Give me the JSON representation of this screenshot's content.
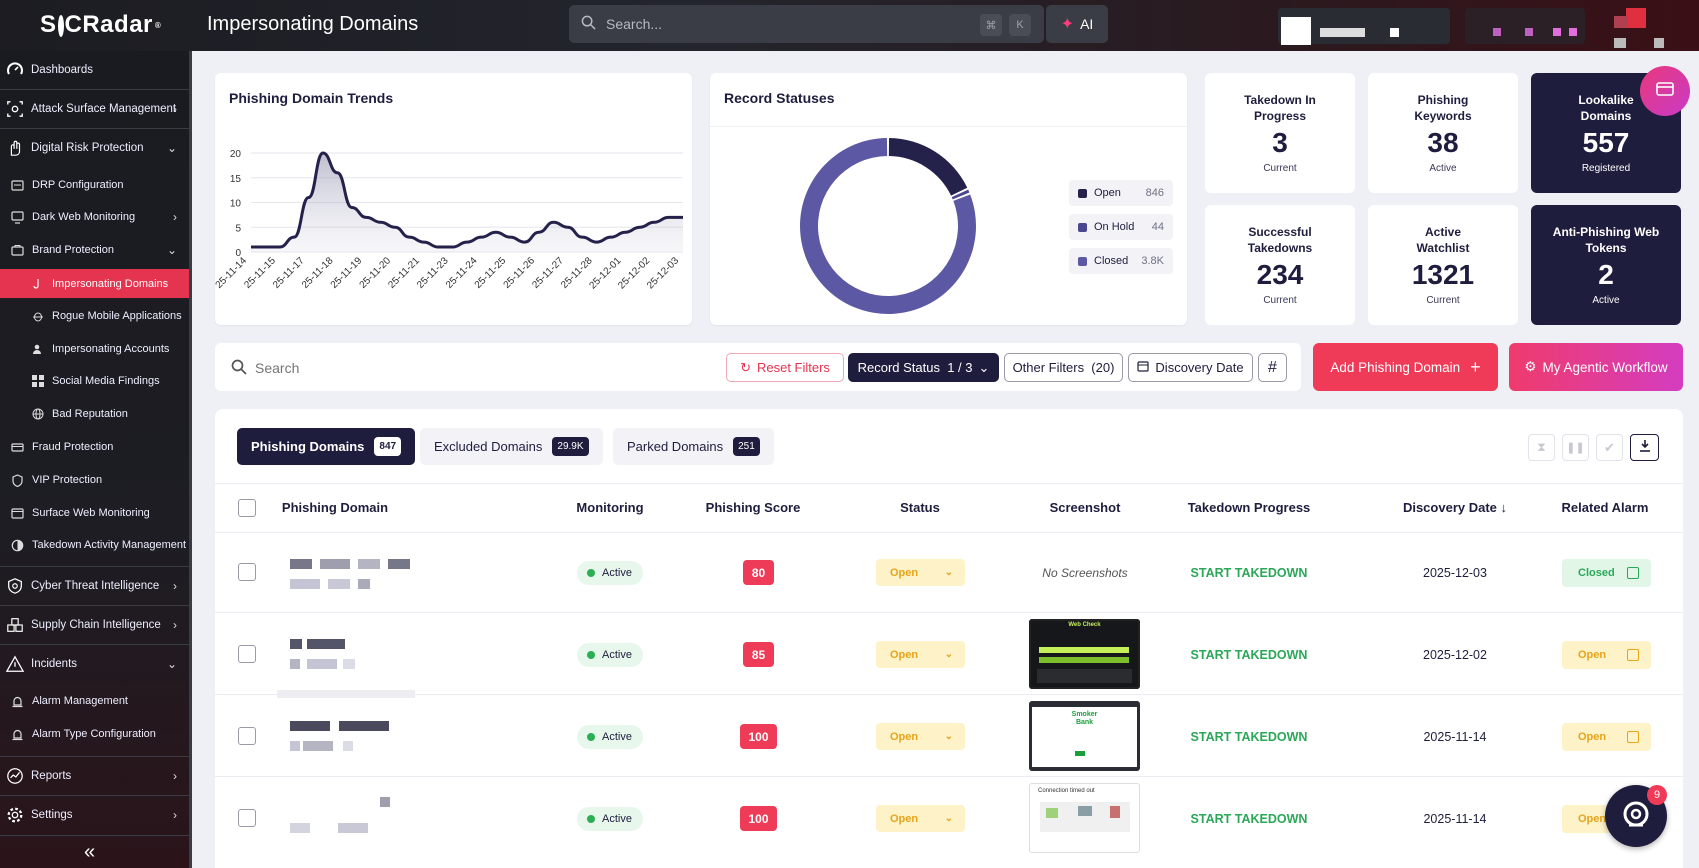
{
  "app": {
    "brand": "SOCRadar",
    "brand_mark": "®",
    "page_title": "Impersonating Domains"
  },
  "search": {
    "placeholder": "Search...",
    "key1": "⌘",
    "key2": "K",
    "ai_label": "AI"
  },
  "sidebar": {
    "items": [
      {
        "label": "Dashboards",
        "icon": "dashboard-icon"
      },
      {
        "label": "Attack Surface Management",
        "icon": "asm-icon"
      },
      {
        "label": "Digital Risk Protection",
        "icon": "hand-icon"
      },
      {
        "label": "DRP Configuration",
        "icon": "config-icon"
      },
      {
        "label": "Dark Web Monitoring",
        "icon": "monitor-icon"
      },
      {
        "label": "Brand Protection",
        "icon": "briefcase-icon"
      },
      {
        "label": "Impersonating Domains",
        "icon": "hook-icon"
      },
      {
        "label": "Rogue Mobile Applications",
        "icon": "bug-icon"
      },
      {
        "label": "Impersonating Accounts",
        "icon": "user-icon"
      },
      {
        "label": "Social Media Findings",
        "icon": "grid-icon"
      },
      {
        "label": "Bad Reputation",
        "icon": "globe-icon"
      },
      {
        "label": "Fraud Protection",
        "icon": "card-icon"
      },
      {
        "label": "VIP Protection",
        "icon": "shield-icon"
      },
      {
        "label": "Surface Web Monitoring",
        "icon": "web-icon"
      },
      {
        "label": "Takedown Activity Management",
        "icon": "takedown-icon"
      },
      {
        "label": "Cyber Threat Intelligence",
        "icon": "cti-icon"
      },
      {
        "label": "Supply Chain Intelligence",
        "icon": "supply-icon"
      },
      {
        "label": "Incidents",
        "icon": "incident-icon"
      },
      {
        "label": "Alarm Management",
        "icon": "alarm-icon"
      },
      {
        "label": "Alarm Type Configuration",
        "icon": "alarm-config-icon"
      },
      {
        "label": "Reports",
        "icon": "reports-icon"
      },
      {
        "label": "Settings",
        "icon": "settings-icon"
      }
    ],
    "collapse": "«"
  },
  "trends": {
    "title": "Phishing Domain Trends",
    "chart_data": {
      "type": "area",
      "title": "Phishing Domain Trends",
      "ylim": [
        0,
        20
      ],
      "yticks": [
        0,
        5,
        10,
        15,
        20
      ],
      "categories": [
        "25-11-14",
        "25-11-15",
        "25-11-17",
        "25-11-18",
        "25-11-19",
        "25-11-20",
        "25-11-21",
        "25-11-23",
        "25-11-24",
        "25-11-25",
        "25-11-26",
        "25-11-27",
        "25-11-28",
        "25-12-01",
        "25-12-02",
        "25-12-03"
      ],
      "x": [
        0,
        1,
        2,
        3,
        4,
        5,
        6,
        7,
        8,
        9,
        10,
        11,
        12,
        13,
        14,
        15,
        16,
        17,
        18,
        19,
        20,
        21,
        22,
        23,
        24,
        25,
        26,
        27,
        28,
        29,
        30
      ],
      "values": [
        1,
        1,
        1,
        3,
        11,
        20,
        16,
        9,
        7,
        6,
        5,
        3,
        2,
        1,
        1,
        2,
        3,
        4,
        3,
        2,
        4,
        6,
        5,
        3,
        2,
        3,
        4,
        5,
        6,
        7,
        7
      ],
      "grid": true
    }
  },
  "statuses": {
    "title": "Record Statuses",
    "chart_data": {
      "type": "pie",
      "labels": [
        "Open",
        "On Hold",
        "Closed"
      ],
      "values": [
        846,
        44,
        3800
      ],
      "colors": [
        "#24224a",
        "#4a4790",
        "#5d58a3"
      ]
    },
    "legend": [
      {
        "label": "Open",
        "value": "846",
        "color": "#24224a"
      },
      {
        "label": "On Hold",
        "value": "44",
        "color": "#4a4790"
      },
      {
        "label": "Closed",
        "value": "3.8K",
        "color": "#5d58a3"
      }
    ]
  },
  "stats": [
    {
      "title": "Takedown In Progress",
      "value": "3",
      "sub": "Current"
    },
    {
      "title": "Phishing Keywords",
      "value": "38",
      "sub": "Active"
    },
    {
      "title": "Lookalike Domains",
      "value": "557",
      "sub": "Registered"
    },
    {
      "title": "Successful Takedowns",
      "value": "234",
      "sub": "Current"
    },
    {
      "title": "Active Watchlist",
      "value": "1321",
      "sub": "Current"
    },
    {
      "title": "Anti-Phishing Web Tokens",
      "value": "2",
      "sub": "Active"
    }
  ],
  "filters": {
    "search_placeholder": "Search",
    "reset": "Reset Filters",
    "record_status": "Record Status  1 / 3",
    "other": "Other Filters  (20)",
    "discovery": "Discovery Date",
    "hash": "#",
    "add": "Add Phishing Domain",
    "workflow": "My Agentic Workflow"
  },
  "tabs": [
    {
      "label": "Phishing Domains",
      "count": "847"
    },
    {
      "label": "Excluded Domains",
      "count": "29.9K"
    },
    {
      "label": "Parked Domains",
      "count": "251"
    }
  ],
  "table": {
    "headers": [
      "Phishing Domain",
      "Monitoring",
      "Phishing Score",
      "Status",
      "Screenshot",
      "Takedown Progress",
      "Discovery Date",
      "Related Alarm"
    ],
    "no_screenshots": "No Screenshots",
    "rows": [
      {
        "monitoring": "Active",
        "score": "80",
        "status": "Open",
        "takedown": "START TAKEDOWN",
        "date": "2025-12-03",
        "alarm": "Closed"
      },
      {
        "monitoring": "Active",
        "score": "85",
        "status": "Open",
        "takedown": "START TAKEDOWN",
        "date": "2025-12-02",
        "alarm": "Open"
      },
      {
        "monitoring": "Active",
        "score": "100",
        "status": "Open",
        "takedown": "START TAKEDOWN",
        "date": "2025-11-14",
        "alarm": "Open"
      },
      {
        "monitoring": "Active",
        "score": "100",
        "status": "Open",
        "takedown": "START TAKEDOWN",
        "date": "2025-11-14",
        "alarm": "Open"
      }
    ]
  },
  "screenshots": {
    "s1": "Web Check",
    "s2a": "Smoker",
    "s2b": "Bank",
    "s3": "Connection timed out"
  },
  "chat": {
    "badge": "9"
  },
  "colors": {
    "accent": "#e5344f",
    "navy": "#1f1d3d",
    "green": "#2aa858",
    "amber": "#e7a41a"
  }
}
